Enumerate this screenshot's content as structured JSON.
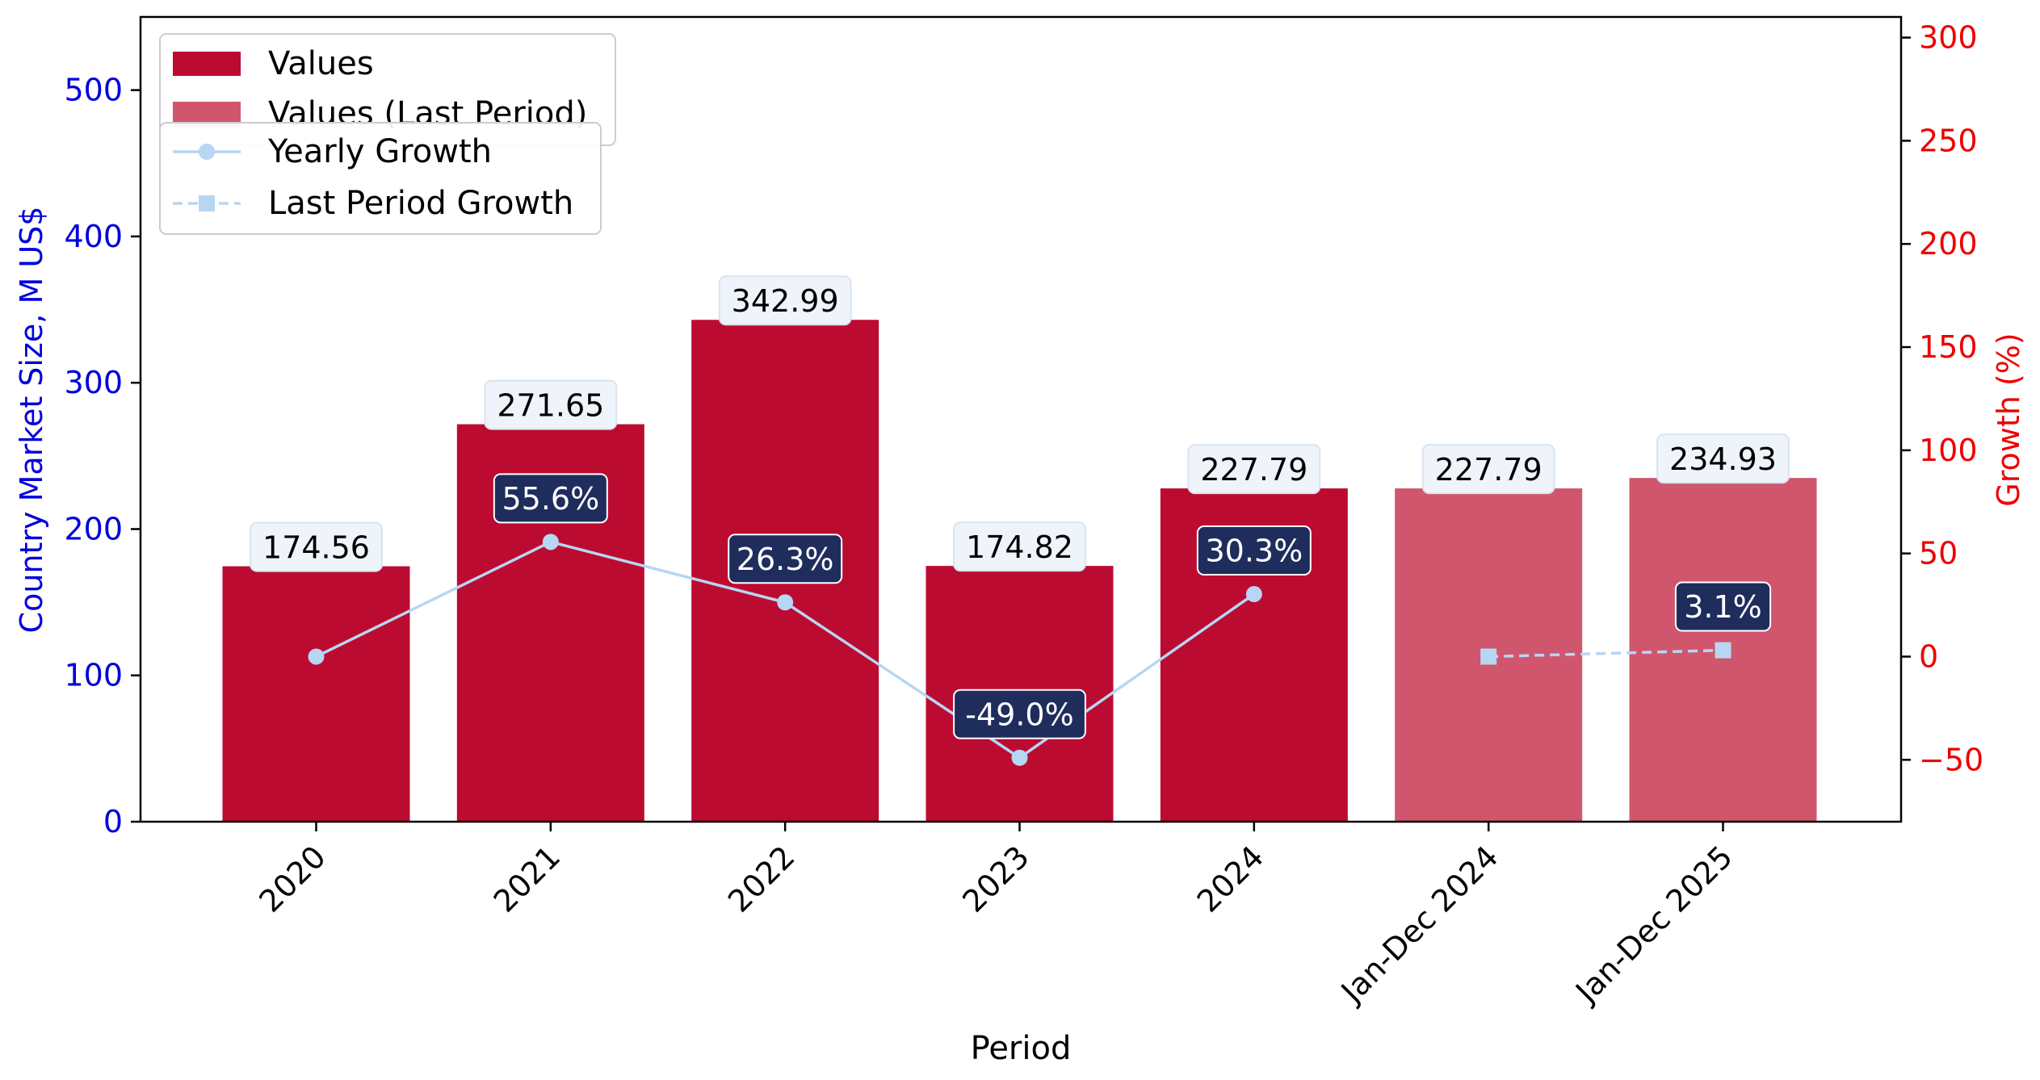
{
  "chart_data": {
    "type": "bar",
    "title": "",
    "xlabel": "Period",
    "ylabel": "Country Market Size, M US$",
    "y2label": "Growth (%)",
    "categories": [
      "2020",
      "2021",
      "2022",
      "2023",
      "2024",
      "Jan-Dec 2024",
      "Jan-Dec 2025"
    ],
    "values": [
      174.56,
      271.65,
      342.99,
      174.82,
      227.79,
      227.79,
      234.93
    ],
    "value_labels": [
      "174.56",
      "271.65",
      "342.99",
      "174.82",
      "227.79",
      "227.79",
      "234.93"
    ],
    "bar_kind": [
      "Values",
      "Values",
      "Values",
      "Values",
      "Values",
      "Values (Last Period)",
      "Values (Last Period)"
    ],
    "ylim": [
      0,
      550
    ],
    "yticks": [
      0,
      100,
      200,
      300,
      400,
      500
    ],
    "y2lim": [
      -80,
      310
    ],
    "y2ticks": [
      -50,
      0,
      50,
      100,
      150,
      200,
      250,
      300
    ],
    "y2tick_labels": [
      "−50",
      "0",
      "50",
      "100",
      "150",
      "200",
      "250",
      "300"
    ],
    "series": [
      {
        "name": "Yearly Growth",
        "style": "solid-circle",
        "points": [
          {
            "x": "2020",
            "y": 0,
            "label": ""
          },
          {
            "x": "2021",
            "y": 55.6,
            "label": "55.6%"
          },
          {
            "x": "2022",
            "y": 26.3,
            "label": "26.3%"
          },
          {
            "x": "2023",
            "y": -49.0,
            "label": "-49.0%"
          },
          {
            "x": "2024",
            "y": 30.3,
            "label": "30.3%"
          }
        ]
      },
      {
        "name": "Last Period Growth",
        "style": "dashed-square",
        "points": [
          {
            "x": "Jan-Dec 2024",
            "y": 0,
            "label": ""
          },
          {
            "x": "Jan-Dec 2025",
            "y": 3.1,
            "label": "3.1%"
          }
        ]
      }
    ],
    "legend_bars": [
      {
        "name": "Values",
        "color": "#bc0b31"
      },
      {
        "name": "Values (Last Period)",
        "color": "#d0566e"
      }
    ],
    "legend_placement": "top-left",
    "grid": false,
    "colors": {
      "bar": "#bc0b31",
      "bar_last": "#d0566e",
      "line": "#b7d6f3",
      "y_axis": "#0000dd",
      "y2_axis": "#ee0000",
      "growth_label_bg": "#1f2d5c",
      "value_label_bg": "#eef4fa"
    }
  }
}
